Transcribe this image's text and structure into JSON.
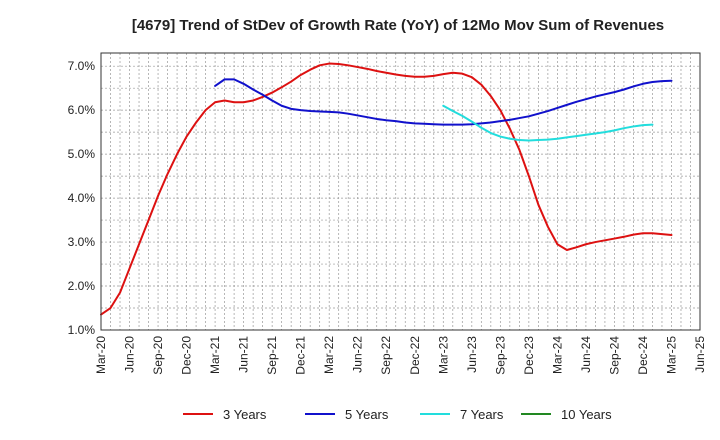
{
  "chart_data": {
    "type": "line",
    "title": "[4679]  Trend of StDev of Growth Rate (YoY) of 12Mo Mov Sum of Revenues",
    "xlabel": "",
    "ylabel": "",
    "ylim": [
      1.0,
      7.3
    ],
    "yticks": [
      1.0,
      2.0,
      3.0,
      4.0,
      5.0,
      6.0,
      7.0
    ],
    "ytick_labels": [
      "1.0%",
      "2.0%",
      "3.0%",
      "4.0%",
      "5.0%",
      "6.0%",
      "7.0%"
    ],
    "x_months": [
      "Mar-20",
      "Apr-20",
      "May-20",
      "Jun-20",
      "Jul-20",
      "Aug-20",
      "Sep-20",
      "Oct-20",
      "Nov-20",
      "Dec-20",
      "Jan-21",
      "Feb-21",
      "Mar-21",
      "Apr-21",
      "May-21",
      "Jun-21",
      "Jul-21",
      "Aug-21",
      "Sep-21",
      "Oct-21",
      "Nov-21",
      "Dec-21",
      "Jan-22",
      "Feb-22",
      "Mar-22",
      "Apr-22",
      "May-22",
      "Jun-22",
      "Jul-22",
      "Aug-22",
      "Sep-22",
      "Oct-22",
      "Nov-22",
      "Dec-22",
      "Jan-23",
      "Feb-23",
      "Mar-23",
      "Apr-23",
      "May-23",
      "Jun-23",
      "Jul-23",
      "Aug-23",
      "Sep-23",
      "Oct-23",
      "Nov-23",
      "Dec-23",
      "Jan-24",
      "Feb-24",
      "Mar-24",
      "Apr-24",
      "May-24",
      "Jun-24",
      "Jul-24",
      "Aug-24",
      "Sep-24",
      "Oct-24",
      "Nov-24",
      "Dec-24",
      "Jan-25",
      "Feb-25",
      "Mar-25",
      "Apr-25",
      "May-25",
      "Jun-25"
    ],
    "xtick_labels": [
      "Mar-20",
      "Jun-20",
      "Sep-20",
      "Dec-20",
      "Mar-21",
      "Jun-21",
      "Sep-21",
      "Dec-21",
      "Mar-22",
      "Jun-22",
      "Sep-22",
      "Dec-22",
      "Mar-23",
      "Jun-23",
      "Sep-23",
      "Dec-23",
      "Mar-24",
      "Jun-24",
      "Sep-24",
      "Dec-24",
      "Mar-25",
      "Jun-25"
    ],
    "grid": true,
    "legend_position": "bottom",
    "series": [
      {
        "name": "3 Years",
        "color": "#dd1111",
        "start": "Mar-20",
        "values": [
          1.35,
          1.5,
          1.85,
          2.4,
          2.95,
          3.5,
          4.05,
          4.55,
          5.0,
          5.4,
          5.72,
          6.0,
          6.18,
          6.22,
          6.18,
          6.18,
          6.22,
          6.3,
          6.4,
          6.52,
          6.65,
          6.8,
          6.92,
          7.02,
          7.06,
          7.05,
          7.02,
          6.98,
          6.94,
          6.89,
          6.85,
          6.81,
          6.78,
          6.76,
          6.76,
          6.78,
          6.82,
          6.85,
          6.83,
          6.75,
          6.58,
          6.32,
          6.0,
          5.58,
          5.1,
          4.5,
          3.85,
          3.35,
          2.95,
          2.82,
          2.88,
          2.95,
          3.0,
          3.04,
          3.08,
          3.12,
          3.17,
          3.2,
          3.2,
          3.18,
          3.16
        ]
      },
      {
        "name": "5 Years",
        "color": "#1111cc",
        "start": "Mar-21",
        "values": [
          6.55,
          6.7,
          6.7,
          6.6,
          6.47,
          6.35,
          6.22,
          6.1,
          6.03,
          6.0,
          5.98,
          5.97,
          5.96,
          5.95,
          5.92,
          5.88,
          5.84,
          5.8,
          5.77,
          5.75,
          5.72,
          5.7,
          5.69,
          5.68,
          5.67,
          5.67,
          5.67,
          5.68,
          5.7,
          5.72,
          5.75,
          5.78,
          5.82,
          5.86,
          5.92,
          5.98,
          6.05,
          6.12,
          6.19,
          6.25,
          6.31,
          6.36,
          6.41,
          6.47,
          6.54,
          6.6,
          6.64,
          6.66,
          6.67
        ]
      },
      {
        "name": "7 Years",
        "color": "#22dddd",
        "start": "Mar-23",
        "values": [
          6.1,
          5.98,
          5.87,
          5.74,
          5.6,
          5.48,
          5.4,
          5.35,
          5.32,
          5.31,
          5.32,
          5.33,
          5.35,
          5.38,
          5.41,
          5.44,
          5.47,
          5.5,
          5.54,
          5.59,
          5.63,
          5.66,
          5.67
        ]
      },
      {
        "name": "10 Years",
        "color": "#228822",
        "start": "Mar-25",
        "values": []
      }
    ]
  }
}
